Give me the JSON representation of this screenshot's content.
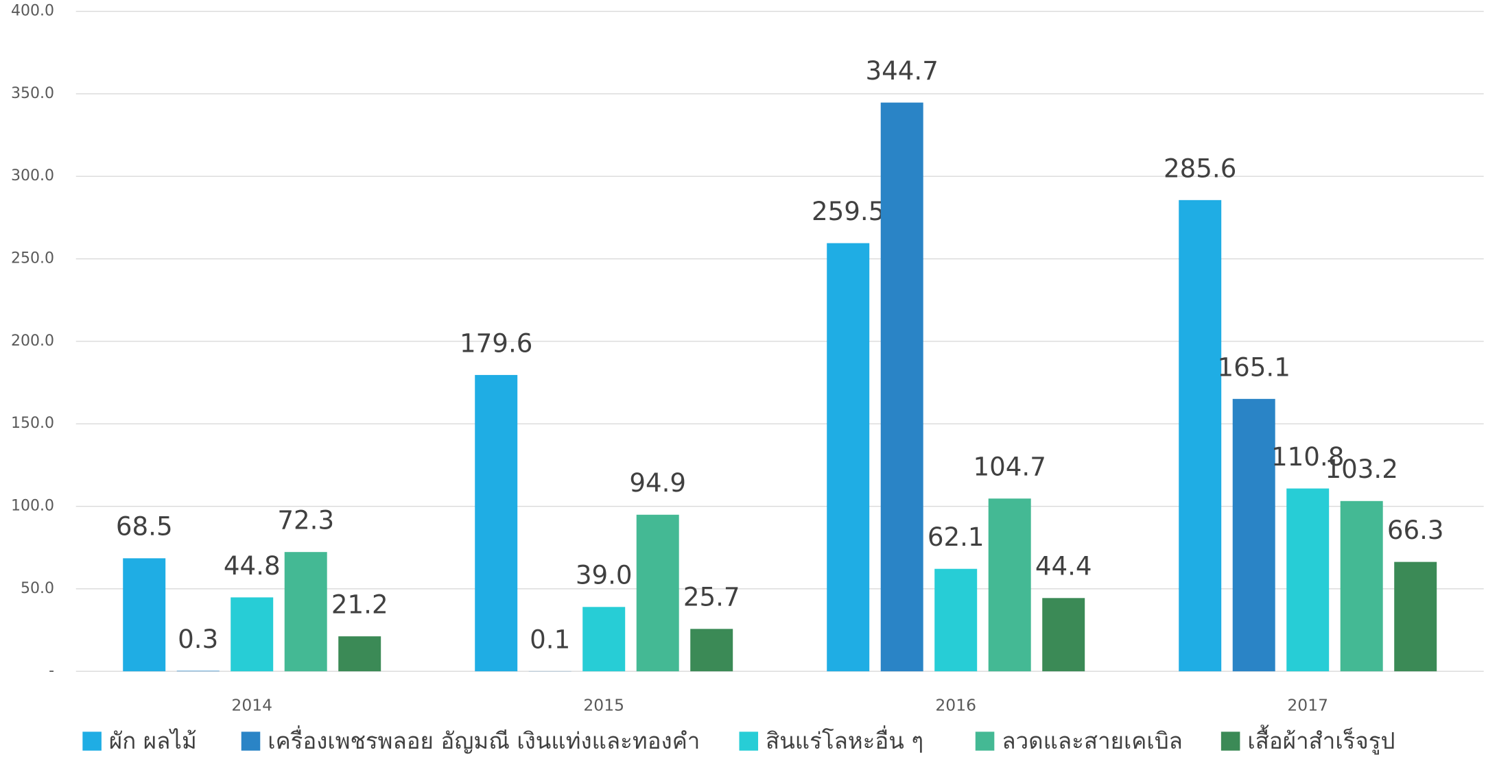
{
  "chart_data": {
    "type": "bar",
    "categories": [
      "2014",
      "2015",
      "2016",
      "2017"
    ],
    "series": [
      {
        "name": "ผัก ผลไม้",
        "color": "#1fade4",
        "values": [
          68.5,
          179.6,
          259.5,
          285.6
        ],
        "value_labels": [
          "68.5",
          "179.6",
          "259.5",
          "285.6"
        ]
      },
      {
        "name": "เครื่องเพชรพลอย อัญมณี เงินแท่งและทองคำ",
        "color": "#2a84c6",
        "values": [
          0.3,
          0.1,
          344.7,
          165.1
        ],
        "value_labels": [
          "0.3",
          "0.1",
          "344.7",
          "165.1"
        ]
      },
      {
        "name": "สินแร่โลหะอื่น ๆ",
        "color": "#27cdd6",
        "values": [
          44.8,
          39.0,
          62.1,
          110.8
        ],
        "value_labels": [
          "44.8",
          "39.0",
          "62.1",
          "110.8"
        ]
      },
      {
        "name": "ลวดและสายเคเบิล",
        "color": "#44b994",
        "values": [
          72.3,
          94.9,
          104.7,
          103.2
        ],
        "value_labels": [
          "72.3",
          "94.9",
          "104.7",
          "103.2"
        ]
      },
      {
        "name": "เสื้อผ้าสำเร็จรูป",
        "color": "#3b8a56",
        "values": [
          21.2,
          25.7,
          44.4,
          66.3
        ],
        "value_labels": [
          "21.2",
          "25.7",
          "44.4",
          "66.3"
        ]
      }
    ],
    "ylim": [
      0,
      400
    ],
    "yticks": [
      {
        "value": 0,
        "label": "-"
      },
      {
        "value": 50,
        "label": "50.0"
      },
      {
        "value": 100,
        "label": "100.0"
      },
      {
        "value": 150,
        "label": "150.0"
      },
      {
        "value": 200,
        "label": "200.0"
      },
      {
        "value": 250,
        "label": "250.0"
      },
      {
        "value": 300,
        "label": "300.0"
      },
      {
        "value": 350,
        "label": "350.0"
      },
      {
        "value": 400,
        "label": "400.0"
      }
    ],
    "grid": true,
    "legend": "bottom"
  }
}
